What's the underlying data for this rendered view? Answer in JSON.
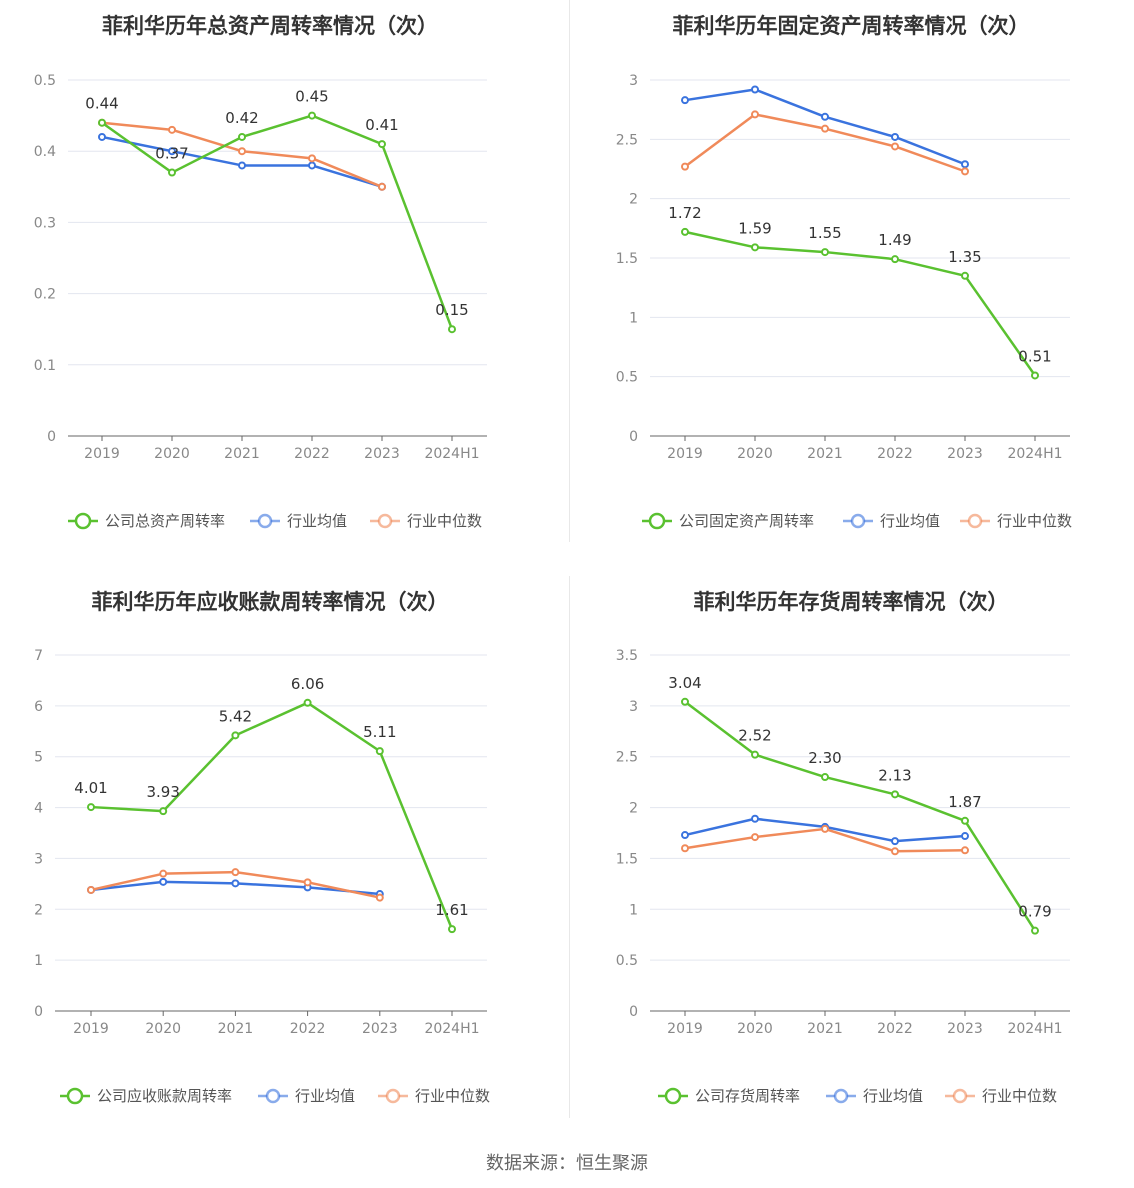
{
  "source_text": "数据来源：恒生聚源",
  "colors": {
    "company": "#5ac130",
    "average": "#3a73de",
    "median": "#f08a5a"
  },
  "chart_data": [
    {
      "type": "line",
      "title": "菲利华历年总资产周转率情况（次）",
      "categories": [
        "2019",
        "2020",
        "2021",
        "2022",
        "2023",
        "2024H1"
      ],
      "ylim": [
        0,
        0.5
      ],
      "yticks": [
        "0",
        "0.1",
        "0.2",
        "0.3",
        "0.4",
        "0.5"
      ],
      "grid": true,
      "legend_position": "bottom",
      "series": [
        {
          "name": "公司总资产周转率",
          "key": "company",
          "values": [
            0.44,
            0.37,
            0.42,
            0.45,
            0.41,
            0.15
          ],
          "labels": [
            "0.44",
            "0.37",
            "0.42",
            "0.45",
            "0.41",
            "0.15"
          ]
        },
        {
          "name": "行业均值",
          "key": "average",
          "values": [
            0.42,
            0.4,
            0.38,
            0.38,
            0.35,
            null
          ]
        },
        {
          "name": "行业中位数",
          "key": "median",
          "values": [
            0.44,
            0.43,
            0.4,
            0.39,
            0.35,
            null
          ]
        }
      ]
    },
    {
      "type": "line",
      "title": "菲利华历年固定资产周转率情况（次）",
      "categories": [
        "2019",
        "2020",
        "2021",
        "2022",
        "2023",
        "2024H1"
      ],
      "ylim": [
        0,
        3
      ],
      "yticks": [
        "0",
        "0.5",
        "1",
        "1.5",
        "2",
        "2.5",
        "3"
      ],
      "grid": true,
      "legend_position": "bottom",
      "series": [
        {
          "name": "公司固定资产周转率",
          "key": "company",
          "values": [
            1.72,
            1.59,
            1.55,
            1.49,
            1.35,
            0.51
          ],
          "labels": [
            "1.72",
            "1.59",
            "1.55",
            "1.49",
            "1.35",
            "0.51"
          ]
        },
        {
          "name": "行业均值",
          "key": "average",
          "values": [
            2.83,
            2.92,
            2.69,
            2.52,
            2.29,
            null
          ]
        },
        {
          "name": "行业中位数",
          "key": "median",
          "values": [
            2.27,
            2.71,
            2.59,
            2.44,
            2.23,
            null
          ]
        }
      ]
    },
    {
      "type": "line",
      "title": "菲利华历年应收账款周转率情况（次）",
      "categories": [
        "2019",
        "2020",
        "2021",
        "2022",
        "2023",
        "2024H1"
      ],
      "ylim": [
        0,
        7
      ],
      "yticks": [
        "0",
        "1",
        "2",
        "3",
        "4",
        "5",
        "6",
        "7"
      ],
      "grid": true,
      "legend_position": "bottom",
      "series": [
        {
          "name": "公司应收账款周转率",
          "key": "company",
          "values": [
            4.01,
            3.93,
            5.42,
            6.06,
            5.11,
            1.61
          ],
          "labels": [
            "4.01",
            "3.93",
            "5.42",
            "6.06",
            "5.11",
            "1.61"
          ]
        },
        {
          "name": "行业均值",
          "key": "average",
          "values": [
            2.38,
            2.54,
            2.51,
            2.43,
            2.3,
            null
          ]
        },
        {
          "name": "行业中位数",
          "key": "median",
          "values": [
            2.38,
            2.7,
            2.73,
            2.53,
            2.23,
            null
          ]
        }
      ]
    },
    {
      "type": "line",
      "title": "菲利华历年存货周转率情况（次）",
      "categories": [
        "2019",
        "2020",
        "2021",
        "2022",
        "2023",
        "2024H1"
      ],
      "ylim": [
        0,
        3.5
      ],
      "yticks": [
        "0",
        "0.5",
        "1",
        "1.5",
        "2",
        "2.5",
        "3",
        "3.5"
      ],
      "grid": true,
      "legend_position": "bottom",
      "series": [
        {
          "name": "公司存货周转率",
          "key": "company",
          "values": [
            3.04,
            2.52,
            2.3,
            2.13,
            1.87,
            0.79
          ],
          "labels": [
            "3.04",
            "2.52",
            "2.30",
            "2.13",
            "1.87",
            "0.79"
          ]
        },
        {
          "name": "行业均值",
          "key": "average",
          "values": [
            1.73,
            1.89,
            1.81,
            1.67,
            1.72,
            null
          ]
        },
        {
          "name": "行业中位数",
          "key": "median",
          "values": [
            1.6,
            1.71,
            1.79,
            1.57,
            1.58,
            null
          ]
        }
      ]
    }
  ]
}
